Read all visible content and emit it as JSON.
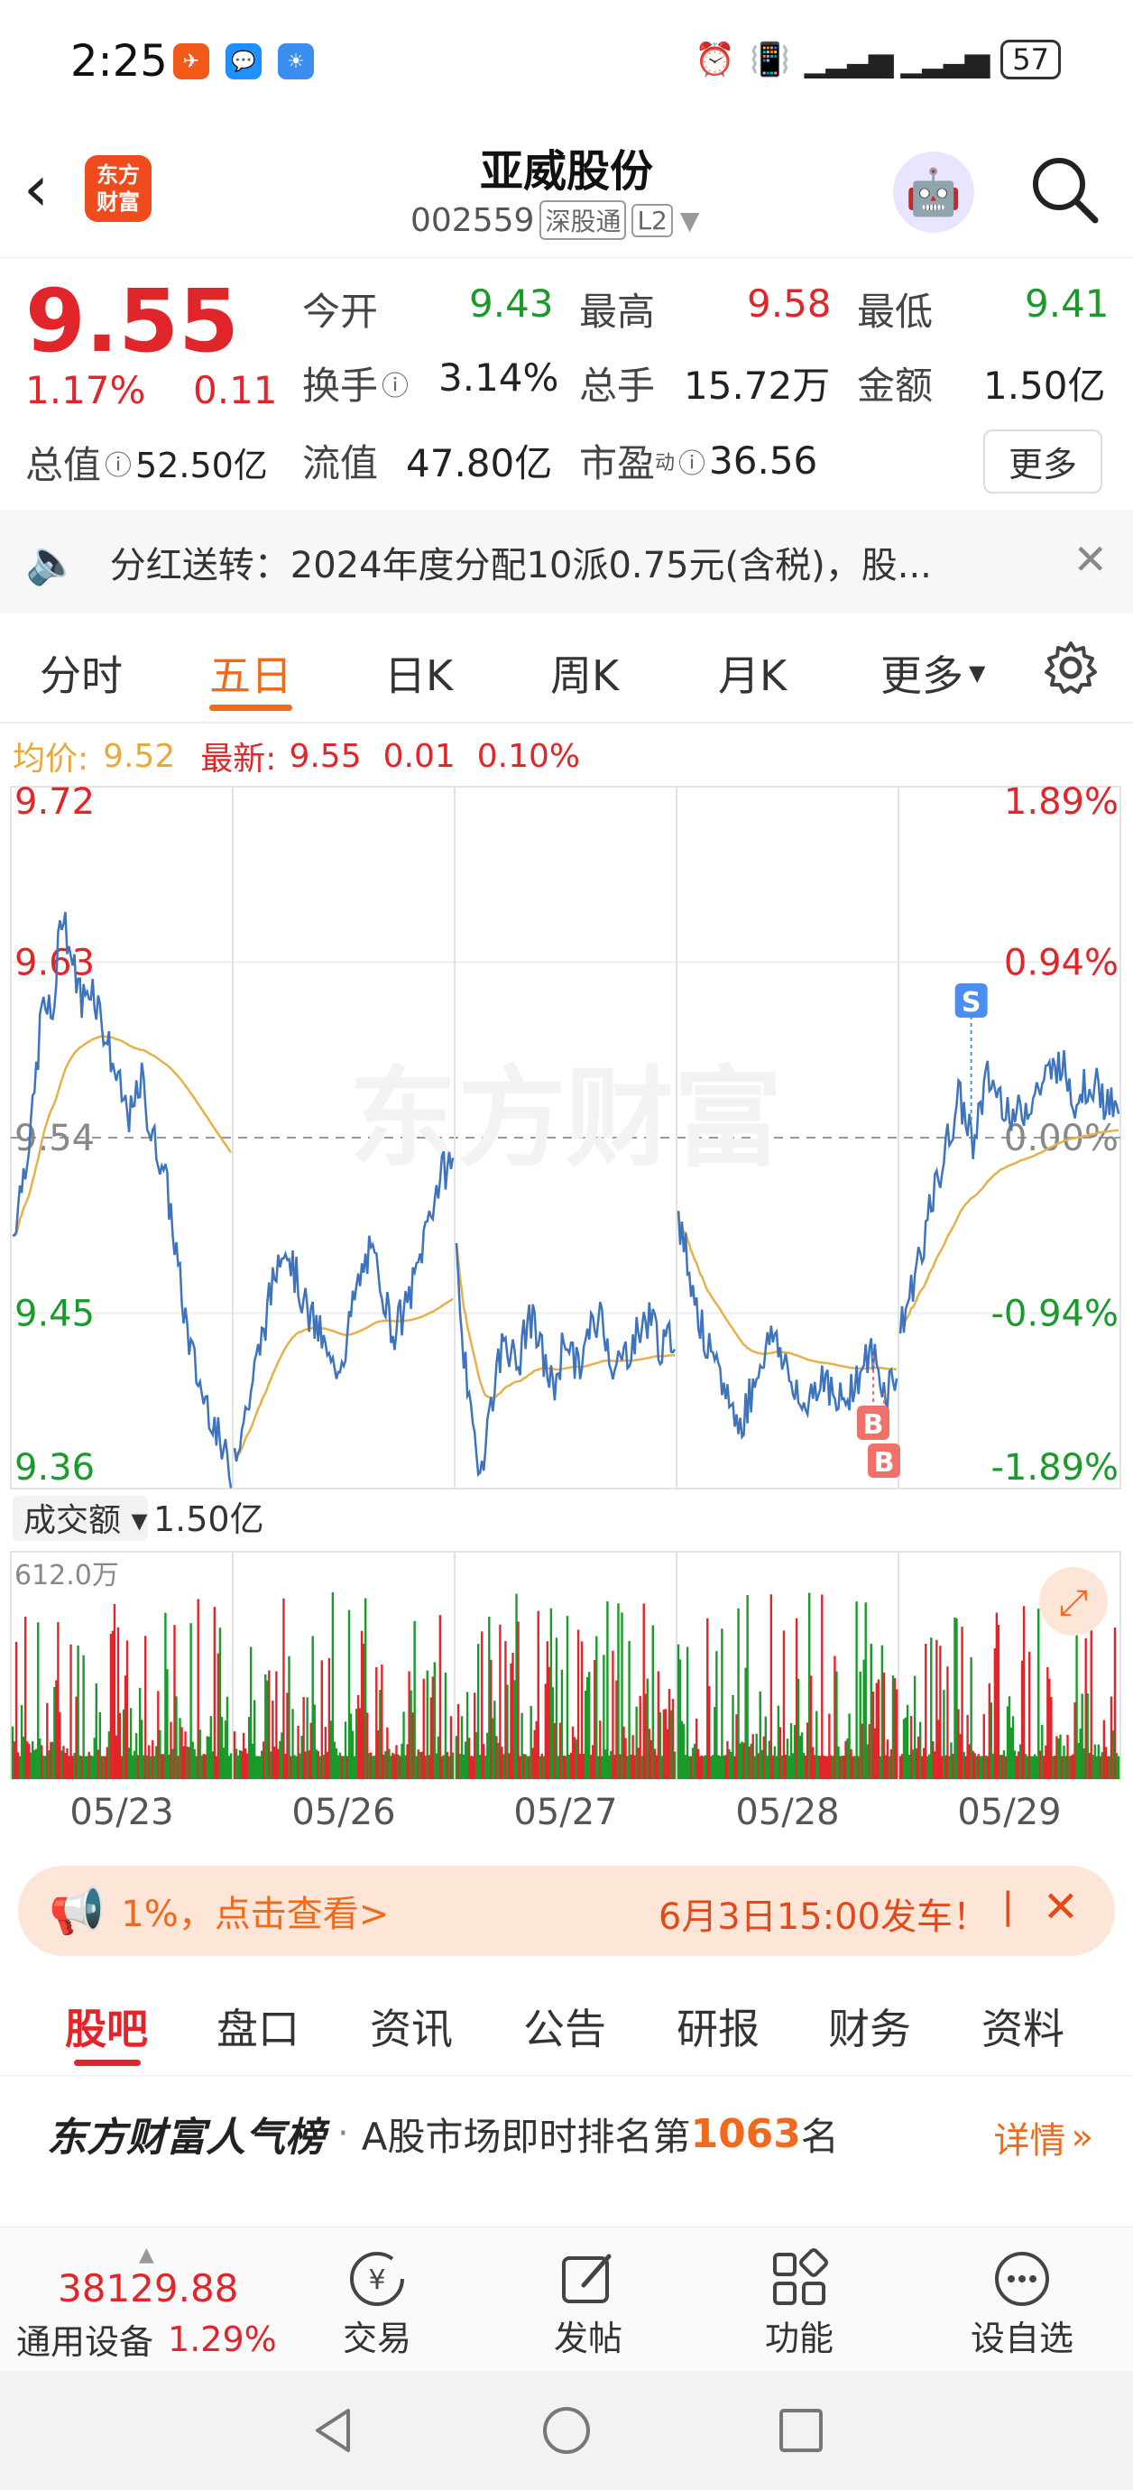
{
  "status": {
    "time": "2:25",
    "battery": "57"
  },
  "header": {
    "logo_line1": "东方",
    "logo_line2": "财富",
    "name": "亚威股份",
    "code": "002559",
    "tag1": "深股通",
    "tag2": "L2"
  },
  "quote": {
    "price": "9.55",
    "change_pct": "1.17%",
    "change": "0.11",
    "open_label": "今开",
    "open": "9.43",
    "high_label": "最高",
    "high": "9.58",
    "low_label": "最低",
    "low": "9.41",
    "turnover_label": "换手",
    "turnover": "3.14%",
    "vol_label": "总手",
    "vol": "15.72万",
    "amount_label": "金额",
    "amount": "1.50亿",
    "mcap_label": "总值",
    "mcap": "52.50亿",
    "float_label": "流值",
    "float": "47.80亿",
    "pe_label": "市盈",
    "pe_sup": "动",
    "pe": "36.56",
    "more": "更多"
  },
  "notice": {
    "text": "分红送转：2024年度分配10派0.75元(含税)，股..."
  },
  "periods": {
    "tabs": [
      "分时",
      "五日",
      "日K",
      "周K",
      "月K",
      "更多"
    ],
    "active": 1
  },
  "chart_info": {
    "avg_label": "均价:",
    "avg": "9.52",
    "latest_label": "最新:",
    "latest": "9.55",
    "chg": "0.01",
    "chg_pct": "0.10%",
    "watermark": "东方财富"
  },
  "chart_data": {
    "type": "line",
    "y_left_ticks": [
      "9.72",
      "9.63",
      "9.54",
      "9.45",
      "9.36"
    ],
    "y_right_ticks": [
      "1.89%",
      "0.94%",
      "0.00%",
      "-0.94%",
      "-1.89%"
    ],
    "x_labels": [
      "05/23",
      "05/26",
      "05/27",
      "05/28",
      "05/29"
    ],
    "ylim": [
      9.36,
      9.72
    ],
    "prev_close": 9.54,
    "markers": [
      "S",
      "B",
      "B"
    ],
    "volume_label": "成交额",
    "volume_total": "1.50亿",
    "volume_max": "612.0万",
    "days": [
      {
        "price": [
          9.49,
          9.52,
          9.55,
          9.61,
          9.6,
          9.66,
          9.63,
          9.61,
          9.62,
          9.6,
          9.58,
          9.56,
          9.55,
          9.57,
          9.54,
          9.53,
          9.5,
          9.46,
          9.43,
          9.41,
          9.4,
          9.38,
          9.37
        ]
      },
      {
        "price": [
          9.38,
          9.4,
          9.43,
          9.46,
          9.49,
          9.47,
          9.45,
          9.44,
          9.42,
          9.43,
          9.46,
          9.48,
          9.47,
          9.44,
          9.45,
          9.47,
          9.5,
          9.52,
          9.53
        ]
      },
      {
        "price": [
          9.48,
          9.4,
          9.37,
          9.41,
          9.44,
          9.42,
          9.45,
          9.43,
          9.41,
          9.44,
          9.42,
          9.44,
          9.45,
          9.42,
          9.43,
          9.44,
          9.45,
          9.43,
          9.44
        ]
      },
      {
        "price": [
          9.5,
          9.47,
          9.44,
          9.42,
          9.41,
          9.39,
          9.41,
          9.43,
          9.44,
          9.42,
          9.4,
          9.41,
          9.42,
          9.4,
          9.41,
          9.42,
          9.43,
          9.41,
          9.42
        ]
      },
      {
        "price": [
          9.44,
          9.47,
          9.5,
          9.53,
          9.56,
          9.54,
          9.57,
          9.56,
          9.55,
          9.56,
          9.57,
          9.58,
          9.56,
          9.57,
          9.56,
          9.55
        ]
      }
    ]
  },
  "promo": {
    "left": "1%，点击查看>",
    "right": "6月3日15:00发车！"
  },
  "content_tabs": {
    "tabs": [
      "股吧",
      "盘口",
      "资讯",
      "公告",
      "研报",
      "财务",
      "资料"
    ],
    "active": 0
  },
  "hot": {
    "brand": "东方财富人气榜",
    "text": "A股市场即时排名第",
    "rank": "1063",
    "suffix": "名",
    "link": "详情"
  },
  "bottom_nav": {
    "index_value": "38129.88",
    "index_name": "通用设备",
    "index_pct": "1.29%",
    "items": [
      "交易",
      "发帖",
      "功能",
      "设自选"
    ]
  }
}
